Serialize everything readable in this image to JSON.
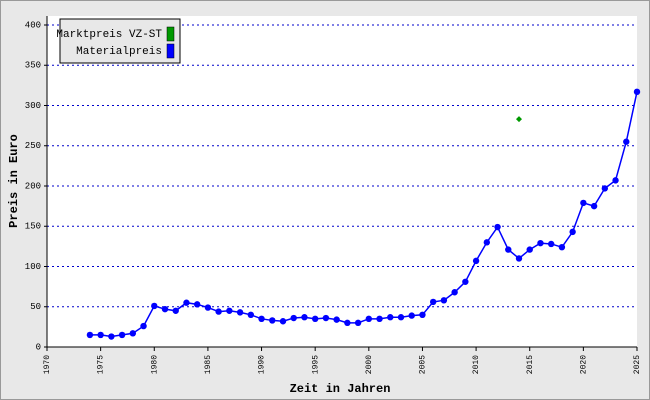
{
  "chart_data": {
    "type": "line",
    "x_label": "Zeit in Jahren",
    "y_label": "Preis in Euro",
    "xlim": [
      1970,
      2025
    ],
    "xticks": [
      1970,
      1975,
      1980,
      1985,
      1990,
      1995,
      2000,
      2005,
      2010,
      2015,
      2020,
      2025
    ],
    "ylim": [
      0,
      400
    ],
    "yticks": [
      0,
      50,
      100,
      150,
      200,
      250,
      300,
      350,
      400
    ],
    "grid": true,
    "legend": "upper left",
    "series": [
      {
        "name": "Marktpreis VZ-ST",
        "color": "#009900",
        "marker_only": true,
        "x": [
          2014
        ],
        "values": [
          283
        ]
      },
      {
        "name": "Materialpreis",
        "color": "#0000ff",
        "marker_only": false,
        "x": [
          1974,
          1975,
          1976,
          1977,
          1978,
          1979,
          1980,
          1981,
          1982,
          1983,
          1984,
          1985,
          1986,
          1987,
          1988,
          1989,
          1990,
          1991,
          1992,
          1993,
          1994,
          1995,
          1996,
          1997,
          1998,
          1999,
          2000,
          2001,
          2002,
          2003,
          2004,
          2005,
          2006,
          2007,
          2008,
          2009,
          2010,
          2011,
          2012,
          2013,
          2014,
          2015,
          2016,
          2017,
          2018,
          2019,
          2020,
          2021,
          2022,
          2023,
          2024,
          2025
        ],
        "values": [
          15,
          15,
          13,
          15,
          17,
          26,
          51,
          47,
          45,
          55,
          53,
          49,
          44,
          45,
          43,
          40,
          35,
          33,
          32,
          36,
          37,
          35,
          36,
          34,
          30,
          30,
          35,
          35,
          37,
          37,
          39,
          40,
          56,
          58,
          68,
          81,
          107,
          130,
          149,
          121,
          110,
          121,
          129,
          128,
          124,
          143,
          179,
          175,
          197,
          207,
          255,
          317
        ]
      }
    ]
  }
}
